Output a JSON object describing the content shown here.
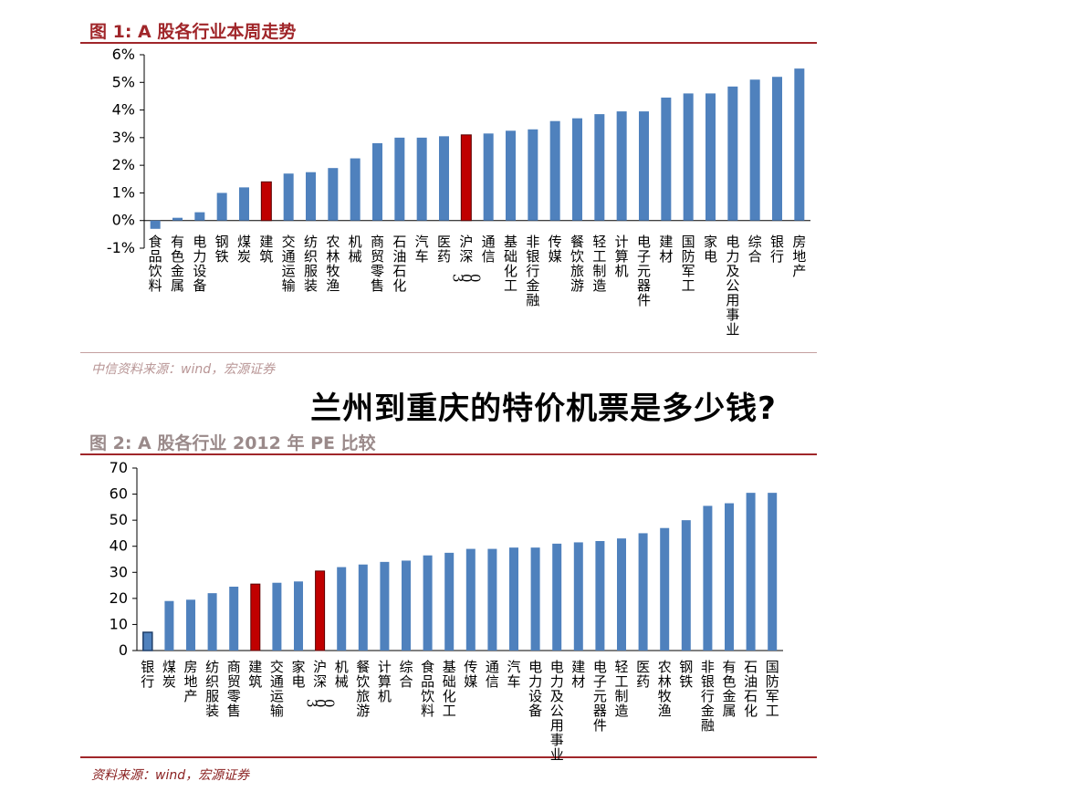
{
  "fig1": {
    "title": "图 1:  A 股各行业本周走势",
    "source": "中信资料来源：wind，宏源证券"
  },
  "overlay_title": "兰州到重庆的特价机票是多少钱?",
  "fig2": {
    "title": "图 2:  A 股各行业 2012 年 PE 比较",
    "source": "资料来源：wind，宏源证券"
  },
  "colors": {
    "bar": "#4f81bd",
    "highlight": "#c00000",
    "accent": "#a0262a"
  },
  "chart_data": [
    {
      "type": "bar",
      "title": "",
      "xlabel": "",
      "ylabel": "",
      "ylim": [
        -1,
        6
      ],
      "yticks": [
        -1,
        0,
        1,
        2,
        3,
        4,
        5,
        6
      ],
      "ytick_suffix": "%",
      "grid": false,
      "categories": [
        "食品饮料",
        "有色金属",
        "电力设备",
        "钢铁",
        "煤炭",
        "建筑",
        "交通运输",
        "纺织服装",
        "农林牧渔",
        "机械",
        "商贸零售",
        "石油石化",
        "汽车",
        "医药",
        "沪深300",
        "通信",
        "基础化工",
        "非银行金融",
        "传媒",
        "餐饮旅游",
        "轻工制造",
        "计算机",
        "电子元器件",
        "建材",
        "国防军工",
        "家电",
        "电力及公用事业",
        "综合",
        "银行",
        "房地产"
      ],
      "values": [
        -0.3,
        0.1,
        0.3,
        1.0,
        1.2,
        1.4,
        1.7,
        1.75,
        1.9,
        2.25,
        2.8,
        3.0,
        3.0,
        3.05,
        3.1,
        3.15,
        3.25,
        3.3,
        3.6,
        3.7,
        3.85,
        3.95,
        3.95,
        4.45,
        4.6,
        4.6,
        4.85,
        5.1,
        5.2,
        5.5
      ],
      "highlight": [
        "建筑",
        "沪深300"
      ]
    },
    {
      "type": "bar",
      "title": "",
      "xlabel": "",
      "ylabel": "",
      "ylim": [
        0,
        70
      ],
      "yticks": [
        0,
        10,
        20,
        30,
        40,
        50,
        60,
        70
      ],
      "ytick_suffix": "",
      "grid": false,
      "categories": [
        "银行",
        "煤炭",
        "房地产",
        "纺织服装",
        "商贸零售",
        "建筑",
        "交通运输",
        "家电",
        "沪深300",
        "机械",
        "餐饮旅游",
        "计算机",
        "综合",
        "食品饮料",
        "基础化工",
        "传媒",
        "通信",
        "汽车",
        "电力设备",
        "电力及公用事业",
        "建材",
        "电子元器件",
        "轻工制造",
        "医药",
        "农林牧渔",
        "钢铁",
        "非银行金融",
        "有色金属",
        "石油石化",
        "国防军工"
      ],
      "values": [
        7,
        19,
        19.5,
        22,
        24.5,
        25.5,
        26,
        26.5,
        30.5,
        32,
        33,
        34,
        34.5,
        36.5,
        37.5,
        39,
        39,
        39.5,
        39.5,
        41,
        41.5,
        42,
        43,
        45,
        47,
        50,
        55.5,
        56.5,
        60.5,
        60.5
      ],
      "highlight": [
        "建筑",
        "沪深300"
      ],
      "outlined": [
        "银行"
      ]
    }
  ]
}
